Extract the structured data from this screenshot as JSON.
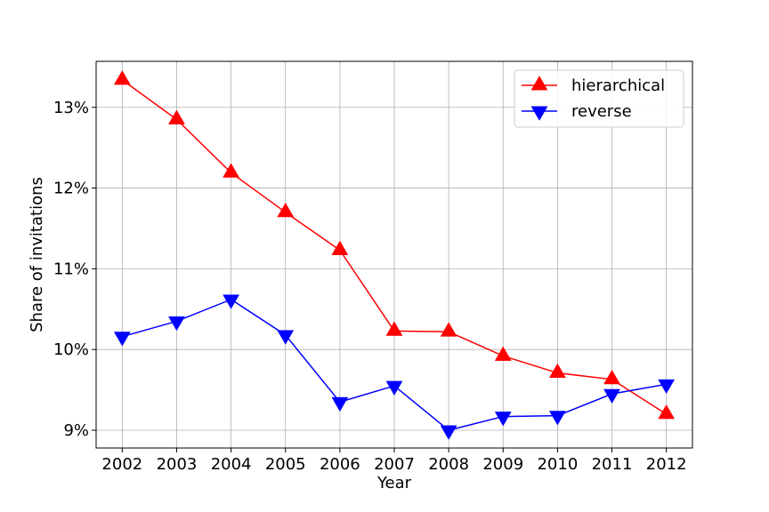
{
  "chart_data": {
    "type": "line",
    "title": "",
    "xlabel": "Year",
    "ylabel": "Share of invitations",
    "x": [
      2002,
      2003,
      2004,
      2005,
      2006,
      2007,
      2008,
      2009,
      2010,
      2011,
      2012
    ],
    "x_tick_labels": [
      "2002",
      "2003",
      "2004",
      "2005",
      "2006",
      "2007",
      "2008",
      "2009",
      "2010",
      "2011",
      "2012"
    ],
    "y_ticks": [
      9,
      10,
      11,
      12,
      13
    ],
    "y_tick_labels": [
      "9%",
      "10%",
      "11%",
      "12%",
      "13%"
    ],
    "ylim": [
      8.78,
      13.57
    ],
    "xlim": [
      2001.52,
      2012.48
    ],
    "grid": true,
    "legend_position": "top-right",
    "series": [
      {
        "name": "hierarchical",
        "color": "#ff0000",
        "marker": "triangle-up",
        "values": [
          13.34,
          12.85,
          12.19,
          11.7,
          11.23,
          10.23,
          10.22,
          9.92,
          9.71,
          9.63,
          9.2
        ]
      },
      {
        "name": "reverse",
        "color": "#0000ff",
        "marker": "triangle-down",
        "values": [
          10.16,
          10.35,
          10.62,
          10.18,
          9.35,
          9.55,
          9.0,
          9.17,
          9.18,
          9.45,
          9.57
        ]
      }
    ]
  }
}
